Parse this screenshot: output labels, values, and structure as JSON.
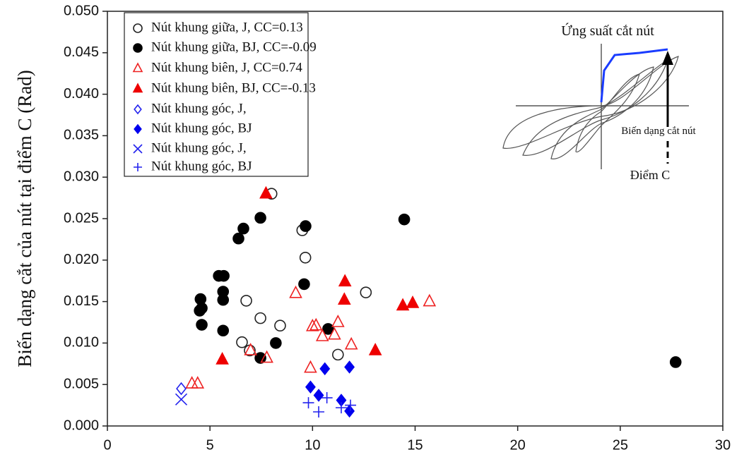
{
  "chart_data": {
    "type": "scatter",
    "ylabel": "Biến dạng cắt của nút tại điểm C (Rad)",
    "xlim": [
      0,
      30
    ],
    "xticks": [
      0,
      5,
      10,
      15,
      20,
      25,
      30
    ],
    "ylim": [
      0,
      0.05
    ],
    "yticks": [
      {
        "value": 0,
        "label": "0.000"
      },
      {
        "value": 0.005,
        "label": "0.005"
      },
      {
        "value": 0.01,
        "label": "0.010"
      },
      {
        "value": 0.015,
        "label": "0.015"
      },
      {
        "value": 0.02,
        "label": "0.020"
      },
      {
        "value": 0.025,
        "label": "0.025"
      },
      {
        "value": 0.03,
        "label": "0.030"
      },
      {
        "value": 0.035,
        "label": "0.035"
      },
      {
        "value": 0.04,
        "label": "0.040"
      },
      {
        "value": 0.045,
        "label": "0.045"
      },
      {
        "value": 0.05,
        "label": "0.050"
      }
    ],
    "legend": "upper left",
    "annotations": [
      "Ứng suất cắt nút",
      "Biến dạng cắt nút",
      "Điểm C"
    ],
    "series": [
      {
        "name": "Nút khung giữa, J, CC=0.13",
        "color": "#222222",
        "marker": "circle",
        "filled": false,
        "x": [
          8.0,
          9.5,
          9.65,
          6.77,
          7.46,
          8.42,
          12.6,
          6.56,
          6.94,
          11.24
        ],
        "y": [
          0.028,
          0.0236,
          0.0203,
          0.0151,
          0.013,
          0.0121,
          0.0161,
          0.0101,
          0.0091,
          0.0086
        ]
      },
      {
        "name": "Nút khung giữa, BJ, CC=-0.09",
        "color": "#000000",
        "marker": "circle",
        "filled": true,
        "x": [
          7.46,
          6.63,
          6.39,
          9.66,
          14.47,
          5.43,
          5.67,
          5.64,
          5.64,
          4.54,
          4.6,
          4.5,
          4.6,
          5.64,
          9.59,
          10.76,
          8.21,
          7.46,
          27.7
        ],
        "y": [
          0.0251,
          0.0238,
          0.0226,
          0.0241,
          0.0249,
          0.0181,
          0.0181,
          0.0162,
          0.0152,
          0.0153,
          0.0142,
          0.0139,
          0.0122,
          0.0115,
          0.0171,
          0.0117,
          0.01,
          0.0082,
          0.0077
        ]
      },
      {
        "name": "Nút khung biên, J, CC=0.74",
        "color": "#ee2222",
        "marker": "triangle",
        "filled": false,
        "x": [
          4.12,
          4.4,
          6.98,
          7.77,
          9.18,
          9.9,
          10.0,
          10.17,
          10.48,
          11.07,
          11.24,
          11.89,
          15.7
        ],
        "y": [
          0.0051,
          0.0051,
          0.0091,
          0.0082,
          0.016,
          0.007,
          0.012,
          0.0121,
          0.0108,
          0.011,
          0.0125,
          0.0098,
          0.015
        ]
      },
      {
        "name": "Nút khung biên, BJ, CC=-0.13",
        "color": "#ee0000",
        "marker": "triangle",
        "filled": true,
        "x": [
          7.73,
          5.6,
          11.58,
          11.55,
          13.06,
          14.4,
          14.88
        ],
        "y": [
          0.028,
          0.008,
          0.0174,
          0.0152,
          0.0091,
          0.0145,
          0.0148
        ]
      },
      {
        "name": "Nút khung góc, J,",
        "color": "#2222ee",
        "marker": "diamond",
        "filled": false,
        "x": [
          3.6
        ],
        "y": [
          0.0045
        ]
      },
      {
        "name": "Nút khung góc, BJ",
        "color": "#0000ee",
        "marker": "diamond",
        "filled": true,
        "x": [
          9.9,
          10.3,
          10.6,
          11.4,
          11.8,
          11.8
        ],
        "y": [
          0.0047,
          0.0037,
          0.0069,
          0.0031,
          0.0071,
          0.0018
        ]
      },
      {
        "name": "Nút khung góc, J,",
        "color": "#2222ee",
        "marker": "x",
        "filled": false,
        "x": [
          3.6
        ],
        "y": [
          0.0032
        ]
      },
      {
        "name": "Nút khung góc, BJ",
        "color": "#2222ee",
        "marker": "plus",
        "filled": false,
        "x": [
          9.8,
          10.3,
          10.7,
          11.4,
          11.85
        ],
        "y": [
          0.0028,
          0.0017,
          0.0034,
          0.0022,
          0.0025
        ]
      }
    ]
  }
}
